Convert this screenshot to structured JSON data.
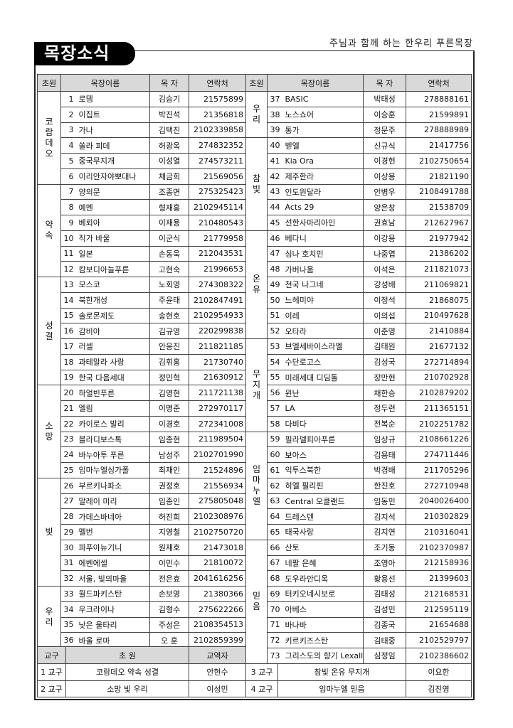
{
  "title": "목장소식",
  "subtitle": "주님과 함께 하는 한우리 푸른목장",
  "headers": {
    "group": "초원",
    "name": "목장이름",
    "leader": "목 자",
    "phone": "연락처"
  },
  "left_groups": [
    {
      "name": "코람데오",
      "rows": [
        [
          "1",
          "로뎀",
          "김승기",
          "21575899"
        ],
        [
          "2",
          "이집트",
          "박진석",
          "21356818"
        ],
        [
          "3",
          "가나",
          "김택진",
          "2102339858"
        ],
        [
          "4",
          "쏠라 피데",
          "허광옥",
          "274832352"
        ],
        [
          "5",
          "중국무지개",
          "이성열",
          "274573211"
        ],
        [
          "6",
          "이리안자야뽀대나",
          "채금희",
          "21569056"
        ]
      ]
    },
    {
      "name": "약속",
      "rows": [
        [
          "7",
          "양의문",
          "조종면",
          "275325423"
        ],
        [
          "8",
          "예멘",
          "형재홍",
          "2102945114"
        ],
        [
          "9",
          "베뢰아",
          "이재용",
          "210480543"
        ],
        [
          "10",
          "직가 바울",
          "이군식",
          "21779958"
        ],
        [
          "11",
          "일본",
          "손동욱",
          "212043531"
        ],
        [
          "12",
          "캄보디아늘푸른",
          "고현숙",
          "21996653"
        ]
      ]
    },
    {
      "name": "성결",
      "rows": [
        [
          "13",
          "모스코",
          "노회영",
          "274308322"
        ],
        [
          "14",
          "북한개성",
          "주윤태",
          "2102847491"
        ],
        [
          "15",
          "솔로몬제도",
          "송현호",
          "2102954933"
        ],
        [
          "16",
          "감비아",
          "김규영",
          "220299838"
        ],
        [
          "17",
          "러셀",
          "안응진",
          "211821185"
        ],
        [
          "18",
          "과테말라 사랑",
          "김휘홍",
          "21730740"
        ],
        [
          "19",
          "한국 다음세대",
          "정민혁",
          "21630912"
        ]
      ]
    },
    {
      "name": "소망",
      "rows": [
        [
          "20",
          "하얼빈푸른",
          "김영현",
          "211721138"
        ],
        [
          "21",
          "엘림",
          "이명준",
          "272970117"
        ],
        [
          "22",
          "카이로스 발리",
          "이경호",
          "272341008"
        ],
        [
          "23",
          "블라디보스톡",
          "임종현",
          "211989504"
        ],
        [
          "24",
          "바누아투 푸른",
          "남성주",
          "2102701990"
        ],
        [
          "25",
          "임마누엘싱가폴",
          "최재인",
          "21524896"
        ]
      ]
    },
    {
      "name": "빛",
      "rows": [
        [
          "26",
          "부르키나파소",
          "권정호",
          "21556934"
        ],
        [
          "27",
          "말레이 미리",
          "임종인",
          "275805048"
        ],
        [
          "28",
          "가데스바네아",
          "허진희",
          "2102308976"
        ],
        [
          "29",
          "멜번",
          "지영철",
          "2102750720"
        ],
        [
          "30",
          "파푸아뉴기니",
          "원재호",
          "21473018"
        ],
        [
          "31",
          "에벤에셀",
          "이민수",
          "21810072"
        ],
        [
          "32",
          "서울, 빛의마을",
          "전은효",
          "2041616256"
        ]
      ]
    },
    {
      "name": "우리",
      "rows": [
        [
          "33",
          "월드파키스탄",
          "손보영",
          "21380366"
        ],
        [
          "34",
          "우크라이나",
          "김형수",
          "275622266"
        ],
        [
          "35",
          "낮은 울타리",
          "주성은",
          "2108354513"
        ],
        [
          "36",
          "바울 로마",
          "오 훈",
          "2102859399"
        ]
      ]
    }
  ],
  "right_groups": [
    {
      "name": "우리",
      "rows": [
        [
          "37",
          "BASIC",
          "박태성",
          "278888161"
        ],
        [
          "38",
          "노스쇼어",
          "이승훈",
          "21599891"
        ],
        [
          "39",
          "통가",
          "정문주",
          "278888989"
        ]
      ]
    },
    {
      "name": "참빛",
      "rows": [
        [
          "40",
          "벧엘",
          "신규식",
          "21417756"
        ],
        [
          "41",
          "Kia Ora",
          "이경현",
          "2102750654"
        ],
        [
          "42",
          "제주한라",
          "이상용",
          "21821190"
        ],
        [
          "43",
          "인도원달라",
          "안병우",
          "2108491788"
        ],
        [
          "44",
          "Acts 29",
          "양은창",
          "21538709"
        ],
        [
          "45",
          "선한사마리아인",
          "권효남",
          "212627967"
        ]
      ]
    },
    {
      "name": "온유",
      "rows": [
        [
          "46",
          "베다니",
          "이강용",
          "21977942"
        ],
        [
          "47",
          "심나 호치민",
          "나중엽",
          "21386202"
        ],
        [
          "48",
          "가버나움",
          "이석은",
          "211821073"
        ],
        [
          "49",
          "천국 나그네",
          "강성배",
          "211069821"
        ],
        [
          "50",
          "느헤미야",
          "이정석",
          "21868075"
        ],
        [
          "51",
          "이레",
          "이의섭",
          "210497628"
        ],
        [
          "52",
          "오타라",
          "이준영",
          "21410884"
        ]
      ]
    },
    {
      "name": "무지개",
      "rows": [
        [
          "53",
          "브엘세바이스라엘",
          "김태원",
          "21677132"
        ],
        [
          "54",
          "수단로고스",
          "김성국",
          "272714894"
        ],
        [
          "55",
          "미래세대 디딤돌",
          "장만현",
          "210702928"
        ],
        [
          "56",
          "윈난",
          "채한승",
          "2102879202"
        ],
        [
          "57",
          "LA",
          "정두련",
          "211365151"
        ],
        [
          "58",
          "다비다",
          "전복순",
          "2102251782"
        ]
      ]
    },
    {
      "name": "임마누엘",
      "rows": [
        [
          "59",
          "필라델피아푸른",
          "임상규",
          "2108661226"
        ],
        [
          "60",
          "보아스",
          "김용태",
          "274711446"
        ],
        [
          "61",
          "익투스북한",
          "박경배",
          "211705296"
        ],
        [
          "62",
          "히엘 필리핀",
          "한진호",
          "272710948"
        ],
        [
          "63",
          "Central 오클랜드",
          "임동민",
          "2040026400"
        ],
        [
          "64",
          "드레스덴",
          "김지석",
          "210302829"
        ],
        [
          "65",
          "태국사랑",
          "김지연",
          "210316041"
        ]
      ]
    },
    {
      "name": "믿음",
      "rows": [
        [
          "66",
          "산토",
          "조기동",
          "2102370987"
        ],
        [
          "67",
          "네팔 은혜",
          "조영아",
          "212158936"
        ],
        [
          "68",
          "도우라안디옥",
          "황용선",
          "21399603"
        ],
        [
          "69",
          "터키오네시보로",
          "김태성",
          "212168531"
        ],
        [
          "70",
          "아베스",
          "김성민",
          "212595119"
        ],
        [
          "71",
          "바나바",
          "김종국",
          "21654688"
        ],
        [
          "72",
          "키르키즈스탄",
          "김태중",
          "2102529797"
        ],
        [
          "73",
          "그리스도의 향기 Lexall",
          "심정임",
          "2102386602"
        ]
      ]
    }
  ],
  "districts": {
    "headers": {
      "district": "교구",
      "groups": "초 원",
      "pastor": "교역자"
    },
    "rows": [
      [
        {
          "district": "1 교구",
          "groups": "코람데오  약속  성결",
          "pastor": "안현수"
        },
        {
          "district": "3 교구",
          "groups": "참빛  온유  무지개",
          "pastor": "이요한"
        }
      ],
      [
        {
          "district": "2 교구",
          "groups": "소망  빛  우리",
          "pastor": "이성민"
        },
        {
          "district": "4 교구",
          "groups": "임마누엘  믿음",
          "pastor": "김진영"
        }
      ]
    ]
  }
}
